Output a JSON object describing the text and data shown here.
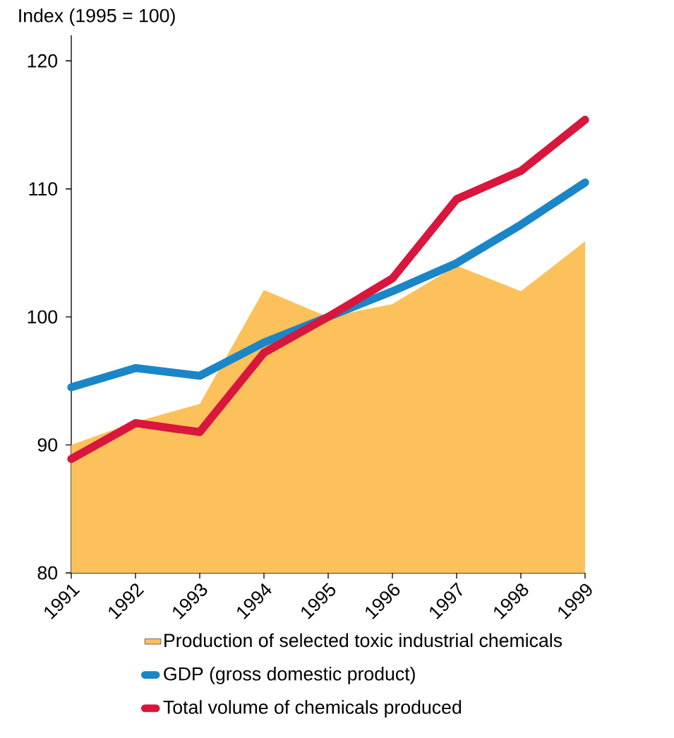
{
  "chart_data": {
    "type": "line",
    "ylabel": "Index (1995 = 100)",
    "x": [
      1991,
      1992,
      1993,
      1994,
      1995,
      1996,
      1997,
      1998,
      1999
    ],
    "xlim": [
      1991,
      1999
    ],
    "xticks": [
      1991,
      1992,
      1993,
      1994,
      1995,
      1996,
      1997,
      1998,
      1999
    ],
    "ylim": [
      80,
      122
    ],
    "yticks": [
      80,
      90,
      100,
      110,
      120
    ],
    "legend": "bottom",
    "grid": false,
    "series": [
      {
        "name": "Production of selected toxic industrial chemicals",
        "type": "area",
        "color": "#fdc15c",
        "values": [
          90.0,
          91.8,
          93.2,
          102.1,
          100.0,
          101.0,
          104.0,
          102.0,
          105.9
        ]
      },
      {
        "name": "GDP (gross domestic product)",
        "color": "#1a86c8",
        "values": [
          94.5,
          96.0,
          95.4,
          98.0,
          100.0,
          102.0,
          104.2,
          107.2,
          110.5
        ]
      },
      {
        "name": "Total volume of chemicals produced",
        "color": "#d9163c",
        "values": [
          88.9,
          91.7,
          91.0,
          97.2,
          100.0,
          103.0,
          109.2,
          111.4,
          115.4
        ]
      }
    ]
  }
}
